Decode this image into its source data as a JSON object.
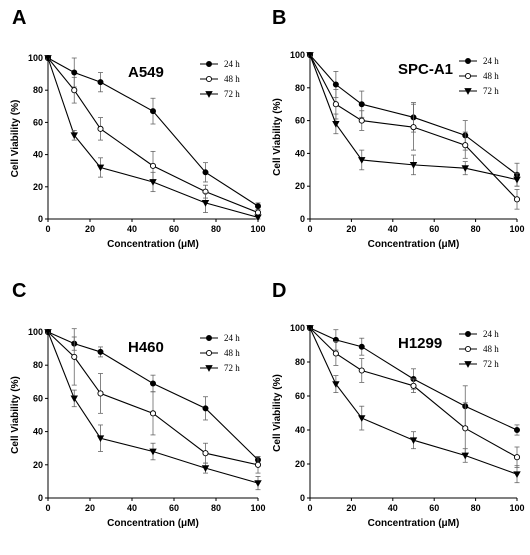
{
  "chart_data": [
    {
      "type": "line",
      "panel": "A",
      "title": "A549",
      "xlabel": "Concentration (μM)",
      "ylabel": "Cell Viability (%)",
      "xlim": [
        0,
        100
      ],
      "ylim": [
        0,
        100
      ],
      "xticks": [
        0,
        20,
        40,
        60,
        80,
        100
      ],
      "yticks": [
        0,
        20,
        40,
        60,
        80,
        100
      ],
      "x": [
        0,
        12.5,
        25,
        50,
        75,
        100
      ],
      "legend_position": "top-right",
      "series": [
        {
          "name": "24 h",
          "marker": "circle-filled",
          "values": [
            100,
            91,
            85,
            67,
            29,
            8
          ],
          "errors": [
            0,
            9,
            6,
            8,
            6,
            2
          ]
        },
        {
          "name": "48 h",
          "marker": "circle-open",
          "values": [
            100,
            80,
            56,
            33,
            17,
            4
          ],
          "errors": [
            0,
            8,
            7,
            9,
            4,
            2
          ]
        },
        {
          "name": "72 h",
          "marker": "triangle-filled",
          "values": [
            100,
            52,
            32,
            23,
            10,
            1
          ],
          "errors": [
            0,
            3,
            6,
            6,
            6,
            1
          ]
        }
      ]
    },
    {
      "type": "line",
      "panel": "B",
      "title": "SPC-A1",
      "xlabel": "Concentration (μM)",
      "ylabel": "Cell Viability (%)",
      "xlim": [
        0,
        100
      ],
      "ylim": [
        0,
        100
      ],
      "xticks": [
        0,
        20,
        40,
        60,
        80,
        100
      ],
      "yticks": [
        0,
        20,
        40,
        60,
        80,
        100
      ],
      "x": [
        0,
        12.5,
        25,
        50,
        75,
        100
      ],
      "legend_position": "top-right",
      "series": [
        {
          "name": "24 h",
          "marker": "circle-filled",
          "values": [
            100,
            82,
            70,
            62,
            51,
            27
          ],
          "errors": [
            0,
            8,
            8,
            9,
            9,
            7
          ]
        },
        {
          "name": "48 h",
          "marker": "circle-open",
          "values": [
            100,
            70,
            60,
            56,
            45,
            12
          ],
          "errors": [
            0,
            9,
            6,
            14,
            8,
            6
          ]
        },
        {
          "name": "72 h",
          "marker": "triangle-filled",
          "values": [
            100,
            58,
            36,
            33,
            31,
            24
          ],
          "errors": [
            0,
            6,
            6,
            6,
            4,
            4
          ]
        }
      ]
    },
    {
      "type": "line",
      "panel": "C",
      "title": "H460",
      "xlabel": "Concentration (μM)",
      "ylabel": "Cell Viability (%)",
      "xlim": [
        0,
        100
      ],
      "ylim": [
        0,
        100
      ],
      "xticks": [
        0,
        20,
        40,
        60,
        80,
        100
      ],
      "yticks": [
        0,
        20,
        40,
        60,
        80,
        100
      ],
      "x": [
        0,
        12.5,
        25,
        50,
        75,
        100
      ],
      "legend_position": "top-right",
      "series": [
        {
          "name": "24 h",
          "marker": "circle-filled",
          "values": [
            100,
            93,
            88,
            69,
            54,
            23
          ],
          "errors": [
            0,
            4,
            3,
            5,
            7,
            2
          ]
        },
        {
          "name": "48 h",
          "marker": "circle-open",
          "values": [
            100,
            85,
            63,
            51,
            27,
            20
          ],
          "errors": [
            0,
            17,
            12,
            13,
            6,
            5
          ]
        },
        {
          "name": "72 h",
          "marker": "triangle-filled",
          "values": [
            100,
            60,
            36,
            28,
            18,
            9
          ],
          "errors": [
            0,
            5,
            8,
            5,
            3,
            4
          ]
        }
      ]
    },
    {
      "type": "line",
      "panel": "D",
      "title": "H1299",
      "xlabel": "Concentration (μM)",
      "ylabel": "Cell Viability (%)",
      "xlim": [
        0,
        100
      ],
      "ylim": [
        0,
        100
      ],
      "xticks": [
        0,
        20,
        40,
        60,
        80,
        100
      ],
      "yticks": [
        0,
        20,
        40,
        60,
        80,
        100
      ],
      "x": [
        0,
        12.5,
        25,
        50,
        75,
        100
      ],
      "legend_position": "top-right",
      "series": [
        {
          "name": "24 h",
          "marker": "circle-filled",
          "values": [
            100,
            93,
            89,
            70,
            54,
            40
          ],
          "errors": [
            0,
            6,
            5,
            6,
            12,
            3
          ]
        },
        {
          "name": "48 h",
          "marker": "circle-open",
          "values": [
            100,
            85,
            75,
            66,
            41,
            24
          ],
          "errors": [
            0,
            7,
            7,
            4,
            15,
            6
          ]
        },
        {
          "name": "72 h",
          "marker": "triangle-filled",
          "values": [
            100,
            67,
            47,
            34,
            25,
            14
          ],
          "errors": [
            0,
            5,
            7,
            5,
            4,
            5
          ]
        }
      ]
    }
  ]
}
